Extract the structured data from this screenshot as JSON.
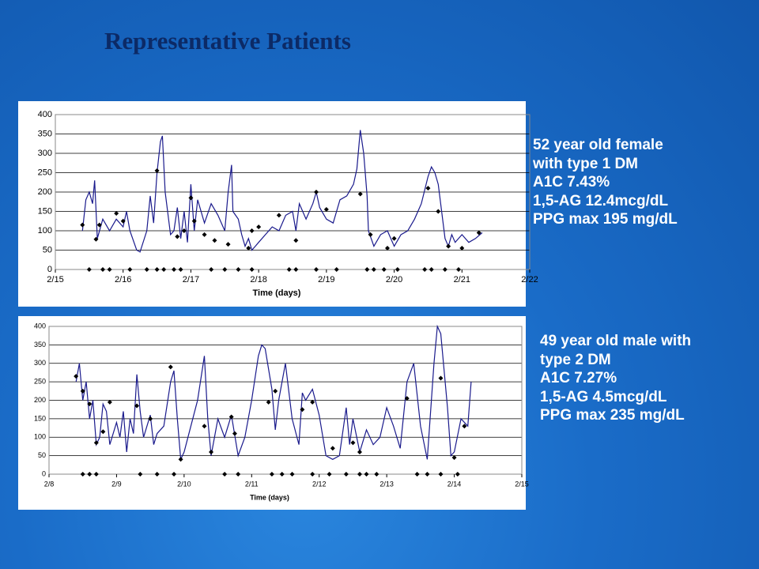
{
  "title": "Representative Patients",
  "annotations": [
    [
      "52 year old female",
      "with type 1 DM",
      "A1C 7.43%",
      "1,5-AG 12.4mcg/dL",
      "PPG max 195 mg/dL"
    ],
    [
      "49 year old male with",
      "type 2 DM",
      "A1C 7.27%",
      "1,5-AG 4.5mcg/dL",
      "PPG max 235 mg/dL"
    ]
  ],
  "chart_data": [
    {
      "type": "line",
      "xlabel": "Time (days)",
      "xlim": [
        15,
        22
      ],
      "ylim": [
        0,
        400
      ],
      "xticks": [
        {
          "value": 15,
          "label": "2/15"
        },
        {
          "value": 16,
          "label": "2/16"
        },
        {
          "value": 17,
          "label": "2/17"
        },
        {
          "value": 18,
          "label": "2/18"
        },
        {
          "value": 19,
          "label": "2/19"
        },
        {
          "value": 20,
          "label": "2/20"
        },
        {
          "value": 21,
          "label": "2/21"
        },
        {
          "value": 22,
          "label": "2/22"
        }
      ],
      "yticks": [
        0,
        50,
        100,
        150,
        200,
        250,
        300,
        350,
        400
      ],
      "grid": true,
      "series": [
        {
          "style": "line",
          "color": "#1a1a8c",
          "x": [
            15.4,
            15.45,
            15.5,
            15.55,
            15.58,
            15.62,
            15.7,
            15.8,
            15.9,
            16.0,
            16.05,
            16.1,
            16.2,
            16.25,
            16.35,
            16.4,
            16.45,
            16.5,
            16.55,
            16.58,
            16.62,
            16.7,
            16.75,
            16.8,
            16.85,
            16.9,
            16.95,
            17.0,
            17.05,
            17.1,
            17.2,
            17.3,
            17.4,
            17.45,
            17.5,
            17.55,
            17.6,
            17.62,
            17.7,
            17.75,
            17.8,
            17.85,
            17.9,
            17.95,
            18.0,
            18.1,
            18.2,
            18.3,
            18.4,
            18.5,
            18.55,
            18.6,
            18.7,
            18.8,
            18.85,
            18.9,
            19.0,
            19.1,
            19.2,
            19.3,
            19.4,
            19.45,
            19.5,
            19.55,
            19.6,
            19.62,
            19.7,
            19.8,
            19.9,
            20.0,
            20.1,
            20.2,
            20.3,
            20.4,
            20.5,
            20.55,
            20.6,
            20.65,
            20.7,
            20.75,
            20.8,
            20.85,
            20.9,
            21.0,
            21.1,
            21.2,
            21.3
          ],
          "values": [
            100,
            180,
            200,
            170,
            230,
            80,
            130,
            100,
            130,
            110,
            150,
            100,
            50,
            45,
            100,
            190,
            120,
            250,
            330,
            345,
            200,
            90,
            100,
            160,
            80,
            150,
            70,
            220,
            100,
            180,
            120,
            170,
            140,
            120,
            100,
            200,
            270,
            150,
            130,
            90,
            60,
            80,
            50,
            60,
            70,
            90,
            110,
            100,
            140,
            150,
            100,
            170,
            130,
            170,
            200,
            160,
            130,
            120,
            180,
            190,
            220,
            260,
            360,
            300,
            190,
            100,
            60,
            90,
            100,
            60,
            90,
            100,
            130,
            170,
            240,
            265,
            250,
            220,
            150,
            80,
            60,
            90,
            70,
            90,
            70,
            80,
            95
          ]
        },
        {
          "style": "points",
          "color": "#000000",
          "x": [
            15.4,
            15.6,
            15.65,
            15.9,
            16.0,
            16.5,
            16.8,
            16.9,
            17.0,
            17.05,
            17.2,
            17.35,
            17.55,
            17.85,
            17.9,
            18.0,
            18.3,
            18.55,
            18.85,
            19.0,
            19.5,
            19.65,
            19.9,
            20.0,
            20.5,
            20.65,
            20.8,
            21.0,
            21.25
          ],
          "values": [
            115,
            78,
            115,
            145,
            125,
            255,
            85,
            100,
            185,
            125,
            90,
            75,
            65,
            55,
            100,
            110,
            140,
            75,
            200,
            155,
            195,
            90,
            55,
            80,
            210,
            150,
            60,
            55,
            95
          ]
        },
        {
          "style": "points",
          "color": "#000000",
          "x": [
            15.5,
            15.7,
            15.8,
            16.1,
            16.35,
            16.5,
            16.6,
            16.75,
            16.85,
            17.3,
            17.5,
            17.7,
            17.9,
            18.45,
            18.55,
            18.85,
            19.15,
            19.6,
            19.7,
            19.85,
            20.05,
            20.45,
            20.55,
            20.75,
            20.95
          ],
          "values": [
            0,
            0,
            0,
            0,
            0,
            0,
            0,
            0,
            0,
            0,
            0,
            0,
            0,
            0,
            0,
            0,
            0,
            0,
            0,
            0,
            0,
            0,
            0,
            0,
            0
          ]
        }
      ]
    },
    {
      "type": "line",
      "xlabel": "Time (days)",
      "xlim": [
        8,
        15
      ],
      "ylim": [
        0,
        400
      ],
      "xticks": [
        {
          "value": 8,
          "label": "2/8"
        },
        {
          "value": 9,
          "label": "2/9"
        },
        {
          "value": 10,
          "label": "2/10"
        },
        {
          "value": 11,
          "label": "2/11"
        },
        {
          "value": 12,
          "label": "2/12"
        },
        {
          "value": 13,
          "label": "2/13"
        },
        {
          "value": 14,
          "label": "2/14"
        },
        {
          "value": 15,
          "label": "2/15"
        }
      ],
      "yticks": [
        0,
        50,
        100,
        150,
        200,
        250,
        300,
        350,
        400
      ],
      "grid": true,
      "series": [
        {
          "style": "line",
          "color": "#1a1a8c",
          "x": [
            8.4,
            8.45,
            8.5,
            8.55,
            8.6,
            8.65,
            8.7,
            8.75,
            8.8,
            8.85,
            8.9,
            9.0,
            9.05,
            9.1,
            9.15,
            9.2,
            9.25,
            9.3,
            9.35,
            9.4,
            9.5,
            9.55,
            9.6,
            9.7,
            9.8,
            9.85,
            9.9,
            9.95,
            10.0,
            10.1,
            10.2,
            10.3,
            10.35,
            10.4,
            10.5,
            10.6,
            10.7,
            10.8,
            10.9,
            11.0,
            11.1,
            11.15,
            11.2,
            11.3,
            11.35,
            11.4,
            11.5,
            11.6,
            11.7,
            11.75,
            11.8,
            11.9,
            12.0,
            12.1,
            12.2,
            12.3,
            12.4,
            12.45,
            12.5,
            12.6,
            12.7,
            12.8,
            12.9,
            13.0,
            13.1,
            13.2,
            13.3,
            13.4,
            13.5,
            13.6,
            13.7,
            13.75,
            13.8,
            13.9,
            13.95,
            14.0,
            14.1,
            14.2,
            14.25
          ],
          "values": [
            250,
            300,
            200,
            250,
            150,
            200,
            80,
            100,
            190,
            170,
            80,
            140,
            100,
            170,
            60,
            150,
            110,
            270,
            170,
            100,
            160,
            80,
            110,
            130,
            250,
            280,
            150,
            40,
            60,
            130,
            200,
            320,
            150,
            50,
            150,
            100,
            160,
            50,
            100,
            200,
            320,
            350,
            340,
            230,
            120,
            200,
            300,
            150,
            80,
            220,
            200,
            230,
            160,
            50,
            40,
            50,
            180,
            80,
            150,
            60,
            120,
            80,
            100,
            180,
            130,
            70,
            250,
            300,
            130,
            40,
            300,
            400,
            380,
            180,
            50,
            60,
            150,
            130,
            250
          ]
        },
        {
          "style": "points",
          "color": "#000000",
          "x": [
            8.4,
            8.5,
            8.6,
            8.7,
            8.8,
            8.9,
            9.3,
            9.5,
            9.8,
            9.95,
            10.3,
            10.4,
            10.7,
            10.75,
            11.25,
            11.35,
            11.75,
            11.9,
            12.2,
            12.5,
            12.6,
            13.3,
            13.8,
            14.0,
            14.15
          ],
          "values": [
            265,
            225,
            190,
            85,
            115,
            195,
            185,
            150,
            290,
            40,
            130,
            60,
            155,
            110,
            195,
            225,
            175,
            195,
            70,
            85,
            60,
            205,
            260,
            45,
            130
          ]
        },
        {
          "style": "points",
          "color": "#000000",
          "x": [
            8.5,
            8.6,
            8.7,
            9.35,
            9.6,
            9.85,
            10.6,
            10.8,
            11.3,
            11.45,
            11.6,
            11.9,
            12.15,
            12.4,
            12.6,
            12.7,
            12.85,
            13.45,
            13.6,
            13.8,
            14.05
          ],
          "values": [
            0,
            0,
            0,
            0,
            0,
            0,
            0,
            0,
            0,
            0,
            0,
            0,
            0,
            0,
            0,
            0,
            0,
            0,
            0,
            0,
            0
          ]
        }
      ]
    }
  ]
}
